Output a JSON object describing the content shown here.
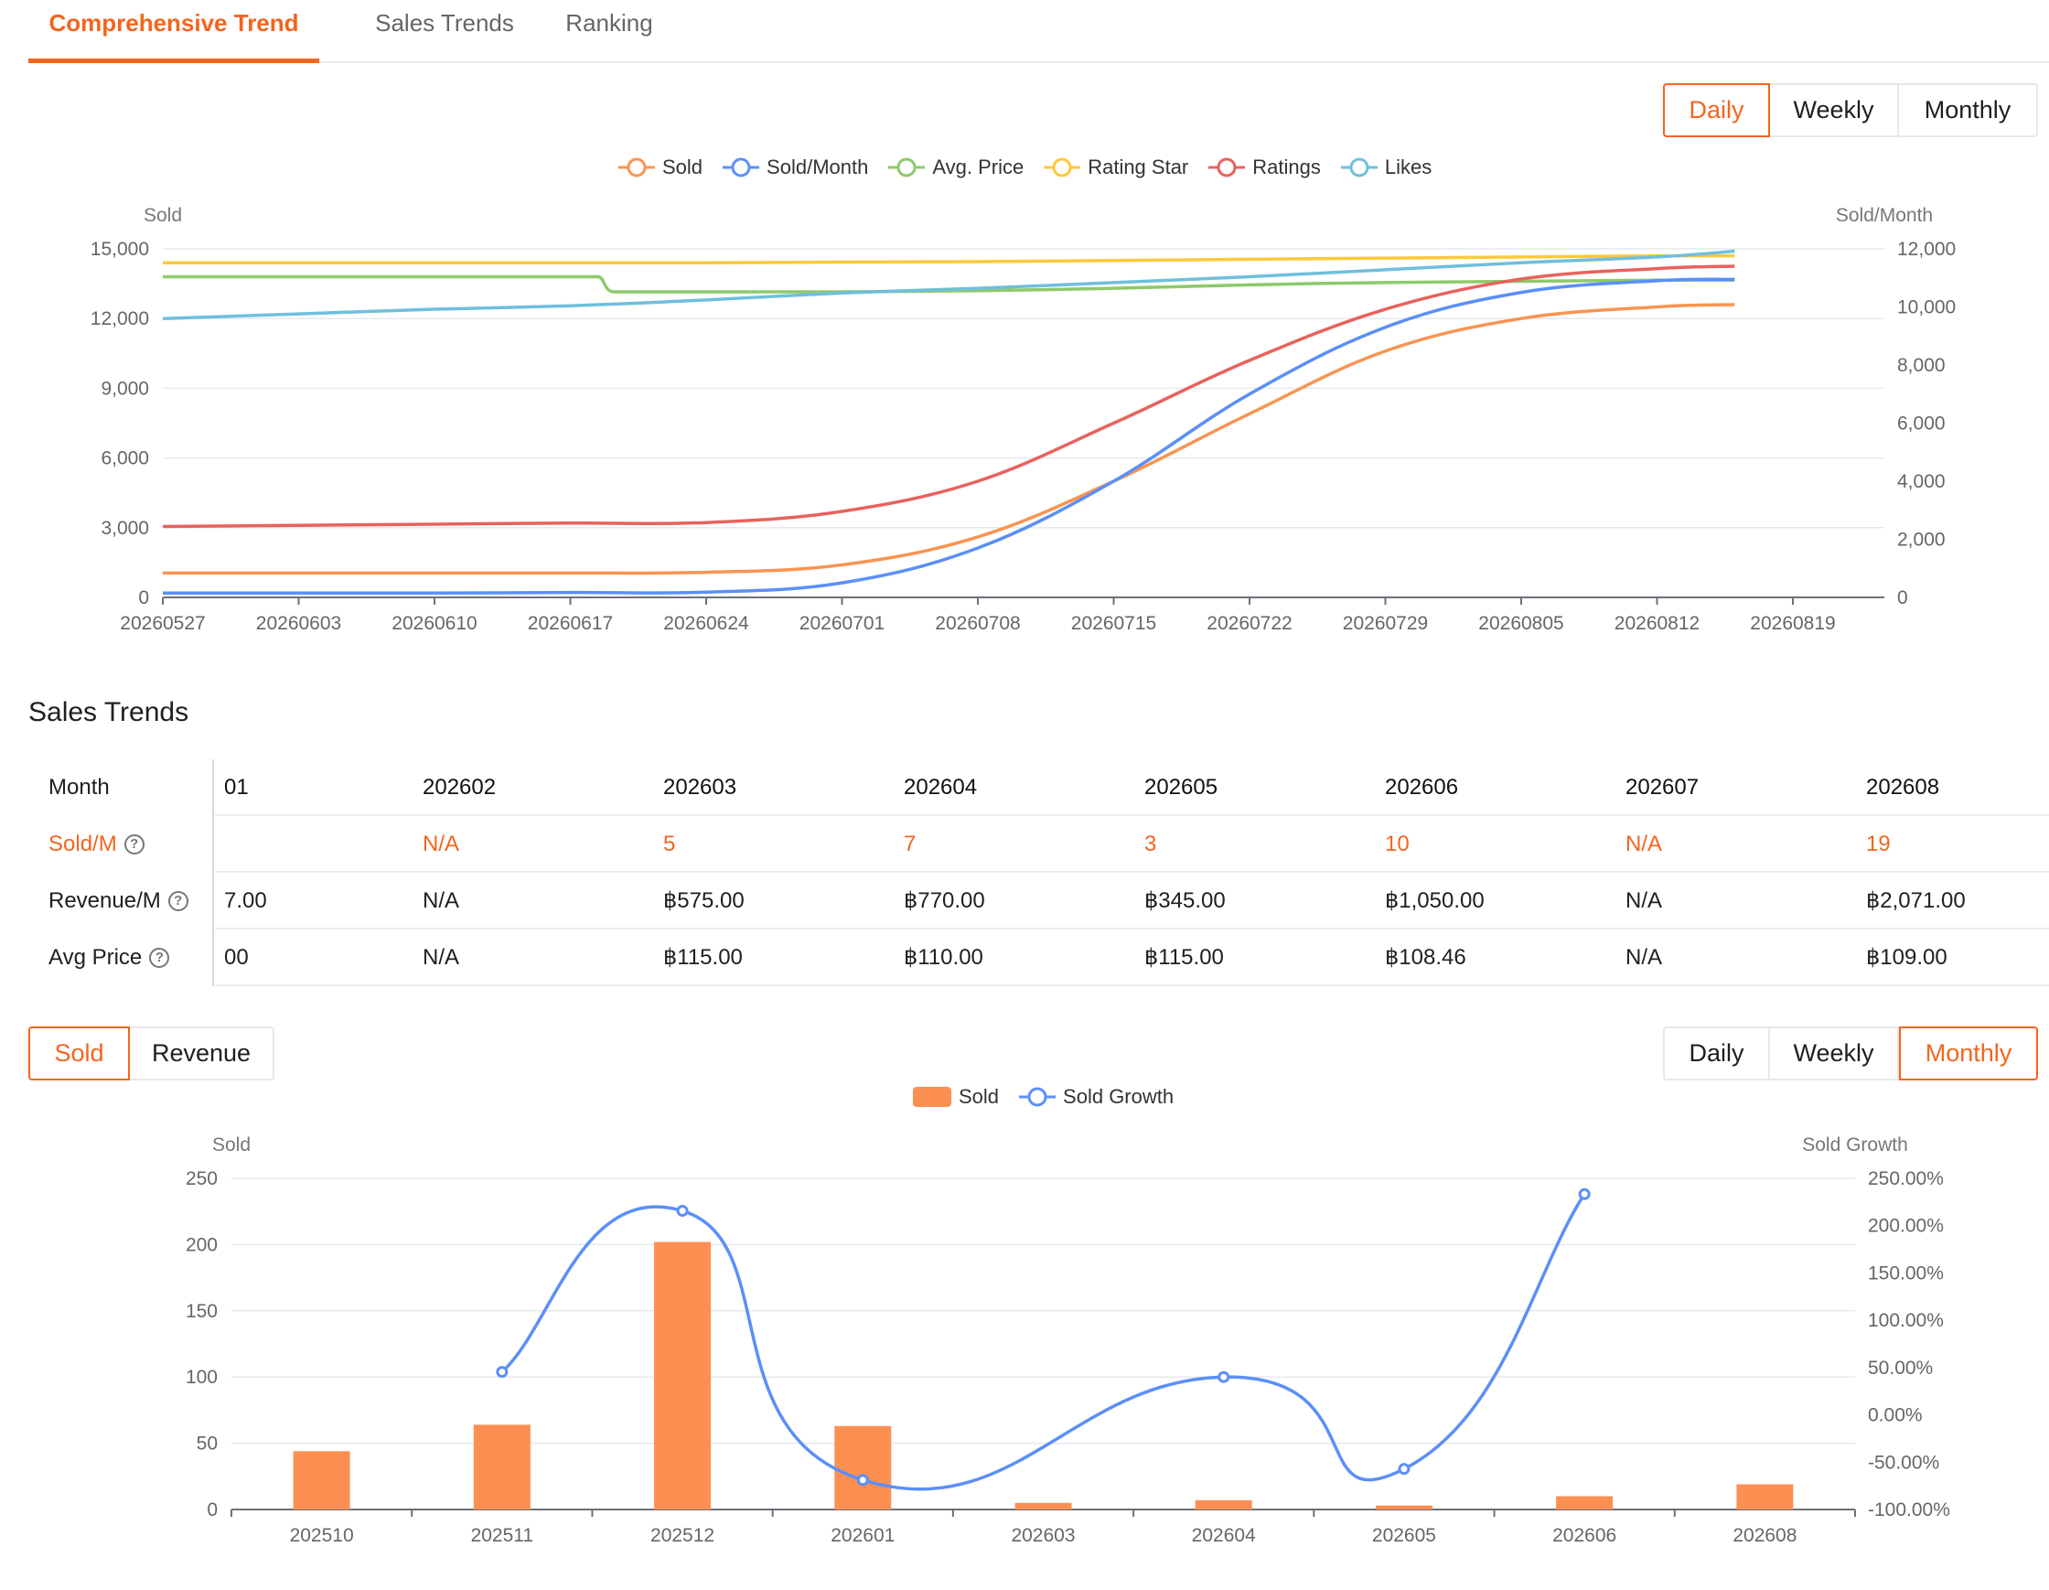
{
  "tabs": [
    {
      "label": "Comprehensive Trend",
      "active": true
    },
    {
      "label": "Sales Trends",
      "active": false
    },
    {
      "label": "Ranking",
      "active": false
    }
  ],
  "period_toggle_top": {
    "daily": "Daily",
    "weekly": "Weekly",
    "monthly": "Monthly",
    "selected": "Daily"
  },
  "trend_chart": {
    "legend": [
      {
        "name": "Sold",
        "color": "#f99451"
      },
      {
        "name": "Sold/Month",
        "color": "#5b8ff9"
      },
      {
        "name": "Avg. Price",
        "color": "#8ec96a"
      },
      {
        "name": "Rating Star",
        "color": "#fcc93b"
      },
      {
        "name": "Ratings",
        "color": "#e8625c"
      },
      {
        "name": "Likes",
        "color": "#6fbfdd"
      }
    ],
    "left_axis_label": "Sold",
    "right_axis_label": "Sold/Month",
    "left_ticks": [
      "15,000",
      "12,000",
      "9,000",
      "6,000",
      "3,000",
      "0"
    ],
    "right_ticks": [
      "12,000",
      "10,000",
      "8,000",
      "6,000",
      "4,000",
      "2,000",
      "0"
    ],
    "x_ticks": [
      "20260527",
      "20260603",
      "20260610",
      "20260617",
      "20260624",
      "20260701",
      "20260708",
      "20260715",
      "20260722",
      "20260729",
      "20260805",
      "20260812",
      "20260819"
    ]
  },
  "sales_trends": {
    "title": "Sales Trends",
    "header_label": "Month",
    "first_partial_col": "01",
    "months": [
      "202602",
      "202603",
      "202604",
      "202605",
      "202606",
      "202607",
      "202608"
    ],
    "rows": [
      {
        "label": "Sold/M",
        "partial": "",
        "values": [
          "N/A",
          "5",
          "7",
          "3",
          "10",
          "N/A",
          "19"
        ]
      },
      {
        "label": "Revenue/M",
        "partial": "7.00",
        "values": [
          "N/A",
          "฿575.00",
          "฿770.00",
          "฿345.00",
          "฿1,050.00",
          "N/A",
          "฿2,071.00"
        ]
      },
      {
        "label": "Avg Price",
        "partial": "00",
        "values": [
          "N/A",
          "฿115.00",
          "฿110.00",
          "฿115.00",
          "฿108.46",
          "N/A",
          "฿109.00"
        ]
      }
    ],
    "help_icon": "?"
  },
  "metric_toggle": {
    "sold": "Sold",
    "revenue": "Revenue",
    "selected": "Sold"
  },
  "period_toggle_bottom": {
    "daily": "Daily",
    "weekly": "Weekly",
    "monthly": "Monthly",
    "selected": "Monthly"
  },
  "chart_data": [
    {
      "type": "line",
      "x": [
        "20260527",
        "20260603",
        "20260610",
        "20260617",
        "20260624",
        "20260701",
        "20260708",
        "20260715",
        "20260722",
        "20260729",
        "20260805",
        "20260812",
        "20260816"
      ],
      "series": [
        {
          "name": "Sold",
          "axis": "left",
          "values": [
            1050,
            1050,
            1050,
            1050,
            1080,
            1400,
            2600,
            5000,
            7900,
            10600,
            12000,
            12500,
            12600
          ]
        },
        {
          "name": "Sold/Month",
          "axis": "right",
          "values": [
            150,
            150,
            150,
            170,
            180,
            500,
            1700,
            4000,
            7000,
            9300,
            10500,
            10900,
            10950
          ]
        },
        {
          "name": "Avg. Price",
          "axis": "left",
          "values": [
            13800,
            13800,
            13800,
            13800,
            13150,
            13150,
            13200,
            13300,
            13450,
            13550,
            13600,
            13650,
            13650
          ]
        },
        {
          "name": "Rating Star",
          "axis": "left",
          "values": [
            14400,
            14400,
            14400,
            14400,
            14400,
            14430,
            14450,
            14500,
            14550,
            14600,
            14650,
            14700,
            14700
          ]
        },
        {
          "name": "Ratings",
          "axis": "left",
          "values": [
            3050,
            3100,
            3150,
            3200,
            3220,
            3700,
            5000,
            7500,
            10200,
            12400,
            13700,
            14150,
            14250
          ]
        },
        {
          "name": "Likes",
          "axis": "left",
          "values": [
            12000,
            12200,
            12400,
            12550,
            12800,
            13100,
            13300,
            13550,
            13800,
            14100,
            14400,
            14650,
            14900
          ]
        }
      ],
      "ylim_left": [
        0,
        15000
      ],
      "ylim_right": [
        0,
        12000
      ],
      "xlabel": "",
      "ylabel": "Sold",
      "y2label": "Sold/Month",
      "grid": true,
      "legend": "top-center"
    },
    {
      "type": "bar",
      "categories": [
        "202510",
        "202511",
        "202512",
        "202601",
        "202603",
        "202604",
        "202605",
        "202606",
        "202608"
      ],
      "series": [
        {
          "name": "Sold",
          "type": "bar",
          "axis": "left",
          "color": "#fc8f52",
          "values": [
            44,
            64,
            202,
            63,
            5,
            7,
            3,
            10,
            19
          ]
        },
        {
          "name": "Sold Growth",
          "type": "line",
          "axis": "right",
          "color": "#5b8ff9",
          "values": [
            null,
            45.45,
            215.63,
            -68.81,
            null,
            40.0,
            -57.14,
            233.33,
            null
          ]
        }
      ],
      "ylim_left": [
        0,
        250
      ],
      "ylim_right": [
        -100,
        250
      ],
      "left_ticks": [
        "250",
        "200",
        "150",
        "100",
        "50",
        "0"
      ],
      "right_ticks": [
        "250.00%",
        "200.00%",
        "150.00%",
        "100.00%",
        "50.00%",
        "0.00%",
        "-50.00%",
        "-100.00%"
      ],
      "ylabel": "Sold",
      "y2label": "Sold Growth",
      "grid": true,
      "legend": "top-center"
    }
  ]
}
